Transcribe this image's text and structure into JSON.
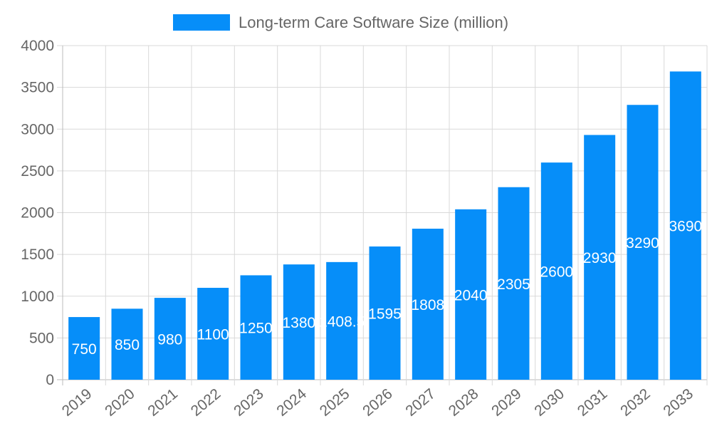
{
  "chart_data": {
    "type": "bar",
    "title": "",
    "xlabel": "",
    "ylabel": "",
    "legend": {
      "placement": "top",
      "entries": [
        "Long-term Care Software Size (million)"
      ]
    },
    "categories": [
      "2019",
      "2020",
      "2021",
      "2022",
      "2023",
      "2024",
      "2025",
      "2026",
      "2027",
      "2028",
      "2029",
      "2030",
      "2031",
      "2032",
      "2033"
    ],
    "series": [
      {
        "name": "Long-term Care Software Size (million)",
        "values": [
          750,
          850,
          980,
          1100,
          1250,
          1380,
          1408.5,
          1595,
          1808,
          2040,
          2305,
          2600,
          2930,
          3290,
          3690
        ]
      }
    ],
    "ylim": [
      0,
      4000
    ],
    "yticks": [
      0,
      500,
      1000,
      1500,
      2000,
      2500,
      3000,
      3500,
      4000
    ],
    "grid": true,
    "data_labels": true,
    "colors": {
      "bar": "#068ef9",
      "label": "#ffffff",
      "grid": "#d9d9d9",
      "text": "#666666"
    }
  }
}
